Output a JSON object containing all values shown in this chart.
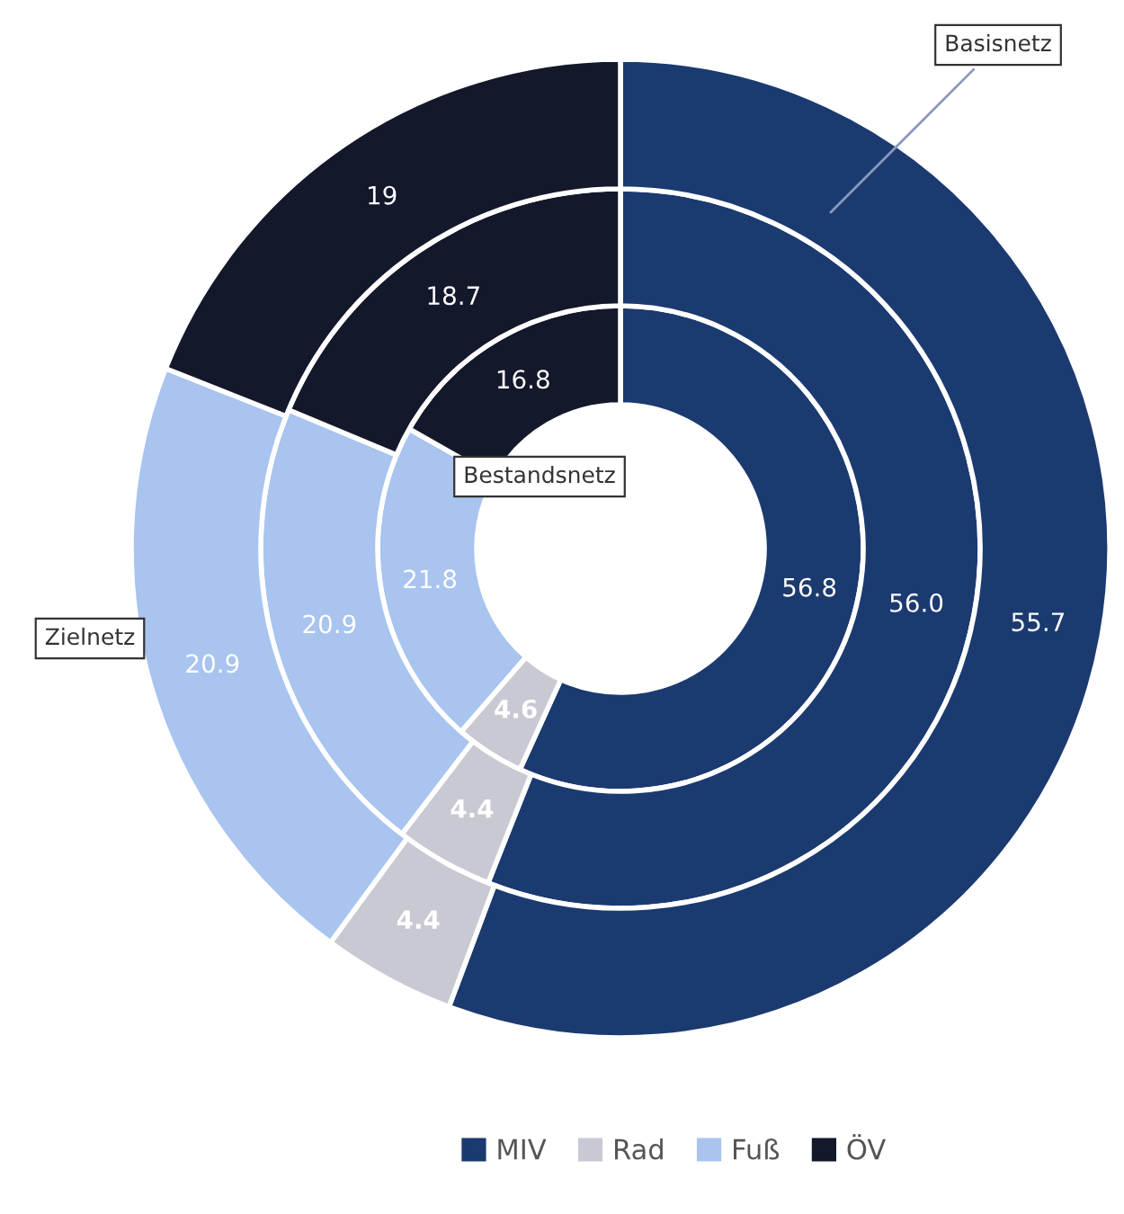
{
  "chart_data": {
    "type": "donut",
    "categories": [
      "MIV",
      "Rad",
      "Fuß",
      "ÖV"
    ],
    "colors": [
      "#1b3a70",
      "#c9c9d3",
      "#a8c4ef",
      "#14182b"
    ],
    "series": [
      {
        "name": "Bestandsnetz",
        "values": [
          56.8,
          4.6,
          21.8,
          16.8
        ],
        "value_labels": [
          "56.8",
          "4.6",
          "21.8",
          "16.8"
        ]
      },
      {
        "name": "Basisnetz",
        "values": [
          56.0,
          4.4,
          20.9,
          18.7
        ],
        "value_labels": [
          "56.0",
          "4.4",
          "20.9",
          "18.7"
        ]
      },
      {
        "name": "Zielnetz",
        "values": [
          55.7,
          4.4,
          20.9,
          19
        ],
        "value_labels": [
          "55.7",
          "4.4",
          "20.9",
          "19"
        ]
      }
    ],
    "legend": "bottom"
  }
}
